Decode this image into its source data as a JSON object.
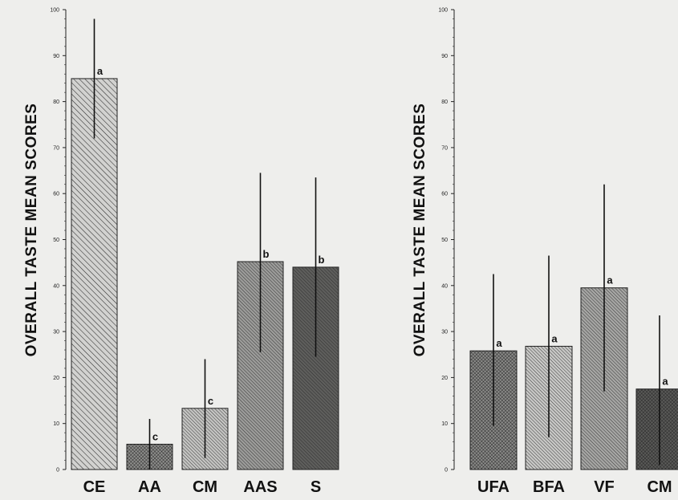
{
  "chart_data": [
    {
      "type": "bar",
      "ylabel": "OVERALL TASTE MEAN SCORES",
      "ylim": [
        0,
        100
      ],
      "yticks": [
        "0",
        "10",
        "20",
        "30",
        "40",
        "50",
        "60",
        "70",
        "80",
        "90",
        "100"
      ],
      "categories": [
        "CE",
        "AA",
        "CM",
        "AAS",
        "S"
      ],
      "values": [
        85,
        5.5,
        13.3,
        45.2,
        44
      ],
      "error_low": [
        72,
        0,
        2.5,
        25.5,
        24.5
      ],
      "error_high": [
        98,
        11,
        24,
        64.5,
        63.5
      ],
      "significance": [
        "a",
        "c",
        "c",
        "b",
        "b"
      ],
      "fills": [
        "#d2d2d0",
        "#8e8e8c",
        "#c4c4c2",
        "#9c9c9a",
        "#5e5e5c"
      ],
      "patterns": [
        "coarse-diagonal",
        "crosshatch",
        "fine-diagonal",
        "fine-diagonal",
        "fine-diagonal"
      ],
      "grid": false
    },
    {
      "type": "bar",
      "ylabel": "OVERALL TASTE MEAN SCORES",
      "ylim": [
        0,
        100
      ],
      "yticks": [
        "0",
        "10",
        "20",
        "30",
        "40",
        "50",
        "60",
        "70",
        "80",
        "90",
        "100"
      ],
      "categories": [
        "UFA",
        "BFA",
        "VF",
        "CM"
      ],
      "values": [
        25.8,
        26.8,
        39.5,
        17.5
      ],
      "error_low": [
        9.5,
        7,
        17,
        1
      ],
      "error_high": [
        42.5,
        46.5,
        62,
        33.5
      ],
      "significance": [
        "a",
        "a",
        "a",
        "a"
      ],
      "fills": [
        "#8a8a88",
        "#c8c8c6",
        "#a6a6a4",
        "#5a5a58"
      ],
      "patterns": [
        "crosshatch",
        "fine-diagonal",
        "fine-diagonal",
        "crosshatch"
      ],
      "grid": false
    }
  ]
}
